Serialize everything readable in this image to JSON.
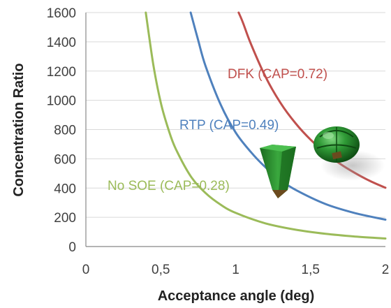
{
  "chart_data": {
    "type": "line",
    "xlabel": "Acceptance angle (deg)",
    "ylabel": "Concentration Ratio",
    "xlim": [
      0,
      2
    ],
    "ylim": [
      0,
      1600
    ],
    "x_ticks": [
      "0",
      "0,5",
      "1",
      "1,5",
      "2"
    ],
    "y_ticks": [
      "0",
      "200",
      "400",
      "600",
      "800",
      "1000",
      "1200",
      "1400",
      "1600"
    ],
    "grid": "horizontal",
    "series": [
      {
        "name": "No SOE (CAP=0.28)",
        "color": "#9bbb59",
        "x": [
          0.4,
          0.45,
          0.5,
          0.55,
          0.6,
          0.7,
          0.8,
          0.9,
          1.0,
          1.2,
          1.4,
          1.6,
          1.8,
          2.0
        ],
        "y": [
          1600,
          1245,
          984,
          805,
          668,
          481,
          365,
          286,
          230,
          158,
          115,
          87,
          68,
          55
        ]
      },
      {
        "name": "RTP (CAP=0.49)",
        "color": "#4f81bd",
        "x": [
          0.7,
          0.75,
          0.8,
          0.9,
          1.0,
          1.1,
          1.2,
          1.3,
          1.4,
          1.6,
          1.8,
          2.0
        ],
        "y": [
          1600,
          1410,
          1232,
          970,
          780,
          648,
          541,
          455,
          388,
          291,
          228,
          184
        ]
      },
      {
        "name": "DFK (CAP=0.72)",
        "color": "#c0504d",
        "x": [
          1.02,
          1.05,
          1.1,
          1.2,
          1.3,
          1.4,
          1.5,
          1.6,
          1.7,
          1.8,
          1.9,
          2.0
        ],
        "y": [
          1600,
          1528,
          1390,
          1160,
          981,
          843,
          731,
          640,
          564,
          501,
          447,
          402
        ]
      }
    ]
  },
  "icons": {
    "funnel": "green-tapered-prism-optic-icon",
    "lens": "green-faceted-dome-optic-icon"
  }
}
